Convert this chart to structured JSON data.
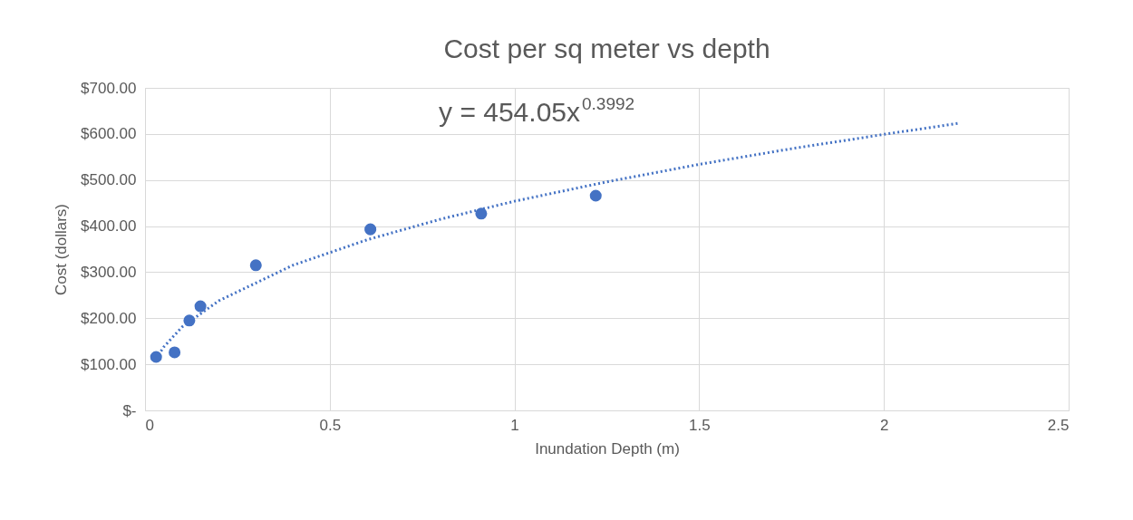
{
  "chart_data": {
    "type": "scatter",
    "title": "Cost per sq meter vs depth",
    "xlabel": "Inundation Depth (m)",
    "ylabel": "Cost (dollars)",
    "series": [
      {
        "color": "#4472c4",
        "marker": "circle",
        "x": [
          0.03,
          0.08,
          0.12,
          0.15,
          0.3,
          0.61,
          0.91,
          1.22
        ],
        "values": [
          116,
          126,
          195,
          226,
          315,
          393,
          427,
          466
        ]
      },
      {
        "type": "line",
        "color": "#4472c4",
        "line_style": "dotted",
        "x": [
          0.03,
          0.05,
          0.1,
          0.2,
          0.4,
          0.6,
          0.8,
          1.0,
          1.25,
          1.5,
          1.75,
          2.0,
          2.2
        ],
        "values": [
          112,
          137,
          181,
          238,
          315,
          370,
          415,
          454,
          496,
          534,
          568,
          599,
          623
        ]
      }
    ],
    "annotations": [
      "y = 454.05x$^{0.3992}$"
    ],
    "xlim": [
      0,
      2.5
    ],
    "xticks": [
      0,
      0.5,
      1,
      1.5,
      2,
      2.5
    ],
    "ylim": [
      0,
      700
    ],
    "yticks": [
      {
        "value": 0,
        "label": "$-"
      },
      {
        "value": 100,
        "label": "$100.00"
      },
      {
        "value": 200,
        "label": "$200.00"
      },
      {
        "value": 300,
        "label": "$300.00"
      },
      {
        "value": 400,
        "label": "$400.00"
      },
      {
        "value": 500,
        "label": "$500.00"
      },
      {
        "value": 600,
        "label": "$600.00"
      },
      {
        "value": 700,
        "label": "$700.00"
      }
    ],
    "grid": true
  }
}
